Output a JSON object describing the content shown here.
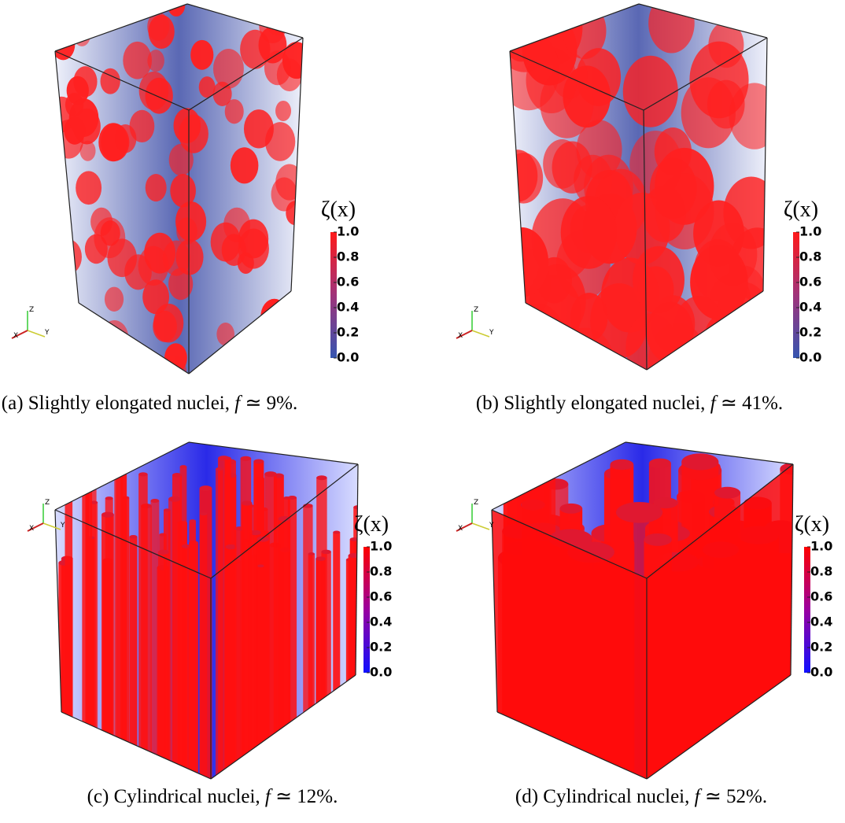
{
  "panels": [
    {
      "colorbar_title": "ζ(x)",
      "colorbar_ticks": [
        "1.0",
        "0.8",
        "0.6",
        "0.4",
        "0.2",
        "0.0"
      ],
      "axes": [
        "X",
        "Y",
        "Z"
      ],
      "caption": {
        "label": "(a)",
        "text": "Slightly elongated nuclei,",
        "variable": "f",
        "rest": "≃ 9%."
      }
    },
    {
      "colorbar_title": "ζ(x)",
      "colorbar_ticks": [
        "1.0",
        "0.8",
        "0.6",
        "0.4",
        "0.2",
        "0.0"
      ],
      "axes": [
        "X",
        "Y",
        "Z"
      ],
      "caption": {
        "label": "(b)",
        "text": "Slightly elongated nuclei,",
        "variable": "f",
        "rest": "≃ 41%."
      }
    },
    {
      "colorbar_title": "ζ(x)",
      "colorbar_ticks": [
        "1.0",
        "0.8",
        "0.6",
        "0.4",
        "0.2",
        "0.0"
      ],
      "axes": [
        "X",
        "Y",
        "Z"
      ],
      "caption": {
        "label": "(c)",
        "text": "Cylindrical nuclei,",
        "variable": "f",
        "rest": "≃ 12%."
      }
    },
    {
      "colorbar_title": "ζ(x)",
      "colorbar_ticks": [
        "1.0",
        "0.8",
        "0.6",
        "0.4",
        "0.2",
        "0.0"
      ],
      "axes": [
        "X",
        "Y",
        "Z"
      ],
      "caption": {
        "label": "(d)",
        "text": "Cylindrical nuclei,",
        "variable": "f",
        "rest": "≃ 52%."
      }
    }
  ]
}
